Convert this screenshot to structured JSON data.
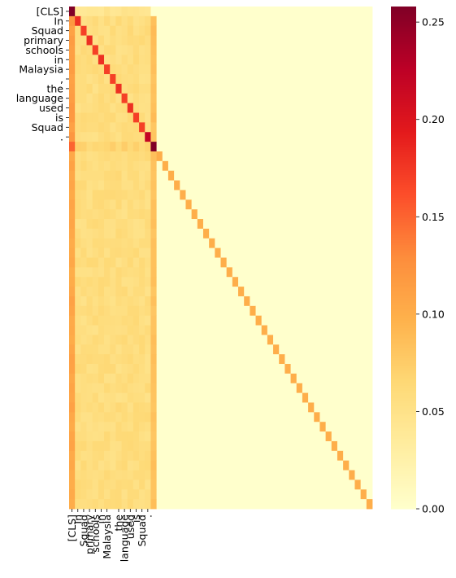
{
  "chart_data": {
    "type": "heatmap",
    "title": "",
    "xlabel": "",
    "ylabel": "",
    "n_rows": 52,
    "n_cols": 52,
    "row_labels": [
      "[CLS]",
      "In",
      "Squad",
      "primary",
      "schools",
      "in",
      "Malaysia",
      ",",
      "the",
      "language",
      "used",
      "is",
      "Squad",
      "."
    ],
    "col_labels": [
      "[CLS]",
      "In",
      "Squad",
      "primary",
      "schools",
      "in",
      "Malaysia",
      "the",
      "language",
      "used",
      "is",
      "Squad",
      "."
    ],
    "col_label_positions": [
      0,
      1,
      2,
      3,
      4,
      5,
      6,
      8,
      9,
      10,
      11,
      12,
      13
    ],
    "content_tokens": 14,
    "diagonal_values": [
      0.26,
      0.18,
      0.17,
      0.18,
      0.17,
      0.18,
      0.17,
      0.17,
      0.18,
      0.17,
      0.18,
      0.17,
      0.17,
      0.22,
      0.26
    ],
    "cls_column_value_content_rows": 0.11,
    "cls_column_value_pad_rows": 0.1,
    "cls_row_value": 0.04,
    "sep_row_first_value": 0.15,
    "sep_row_values": 0.06,
    "sep_column_values": 0.08,
    "content_background": 0.05,
    "pad_diagonal_value": 0.1,
    "pad_background": 0.0,
    "colorbar": {
      "min": 0.0,
      "max": 0.258,
      "ticks": [
        0.0,
        0.05,
        0.1,
        0.15,
        0.2,
        0.25
      ],
      "tick_labels": [
        "0.00",
        "0.05",
        "0.10",
        "0.15",
        "0.20",
        "0.25"
      ],
      "colormap": "YlOrRd"
    }
  }
}
